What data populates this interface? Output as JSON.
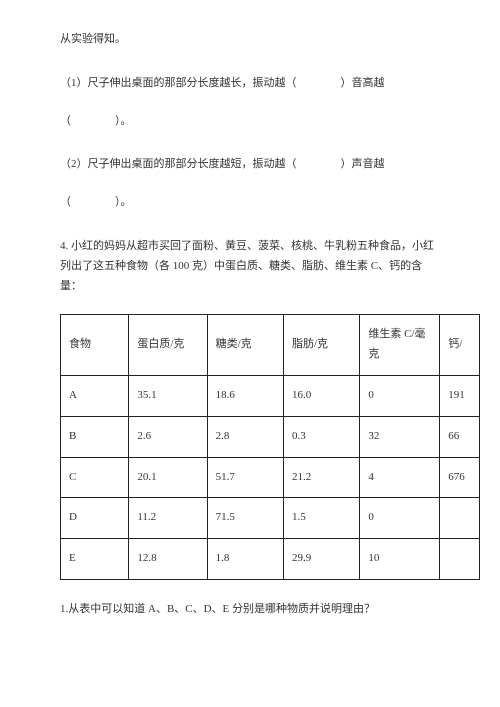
{
  "intro": "从实验得知。",
  "q1_a": "（1）尺子伸出桌面的那部分长度越长，振动越（　　　　）音高越",
  "q1_b": "（　　　　）。",
  "q2_a": "（2）尺子伸出桌面的那部分长度越短，振动越（　　　　）声音越",
  "q2_b": "（　　　　）。",
  "q4_a": "4. 小红的妈妈从超市买回了面粉、黄豆、菠菜、核桃、牛乳粉五种食品，小红",
  "q4_b": "列出了这五种食物（各 100 克）中蛋白质、糖类、脂肪、维生素 C、钙的含",
  "q4_c": "量：",
  "table": {
    "headers": {
      "food": "食物",
      "protein": "蛋白质/克",
      "sugar": "糖类/克",
      "fat": "脂肪/克",
      "vitc": "维生素 C/毫克",
      "calcium": "钙/"
    },
    "rows": [
      {
        "food": "A",
        "protein": "35.1",
        "sugar": "18.6",
        "fat": "16.0",
        "vitc": "0",
        "calcium": "191"
      },
      {
        "food": "B",
        "protein": "2.6",
        "sugar": "2.8",
        "fat": "0.3",
        "vitc": "32",
        "calcium": "66"
      },
      {
        "food": "C",
        "protein": "20.1",
        "sugar": "51.7",
        "fat": "21.2",
        "vitc": "4",
        "calcium": "676"
      },
      {
        "food": "D",
        "protein": "11.2",
        "sugar": "71.5",
        "fat": "1.5",
        "vitc": "0",
        "calcium": ""
      },
      {
        "food": "E",
        "protein": "12.8",
        "sugar": "1.8",
        "fat": "29.9",
        "vitc": "10",
        "calcium": ""
      }
    ]
  },
  "q_last": "1.从表中可以知道 A、B、C、D、E 分别是哪种物质并说明理由？",
  "colors": {
    "text": "#333333",
    "border": "#222222",
    "bg": "#ffffff"
  },
  "typography": {
    "font_family": "SimSun",
    "body_fontsize": 11
  }
}
